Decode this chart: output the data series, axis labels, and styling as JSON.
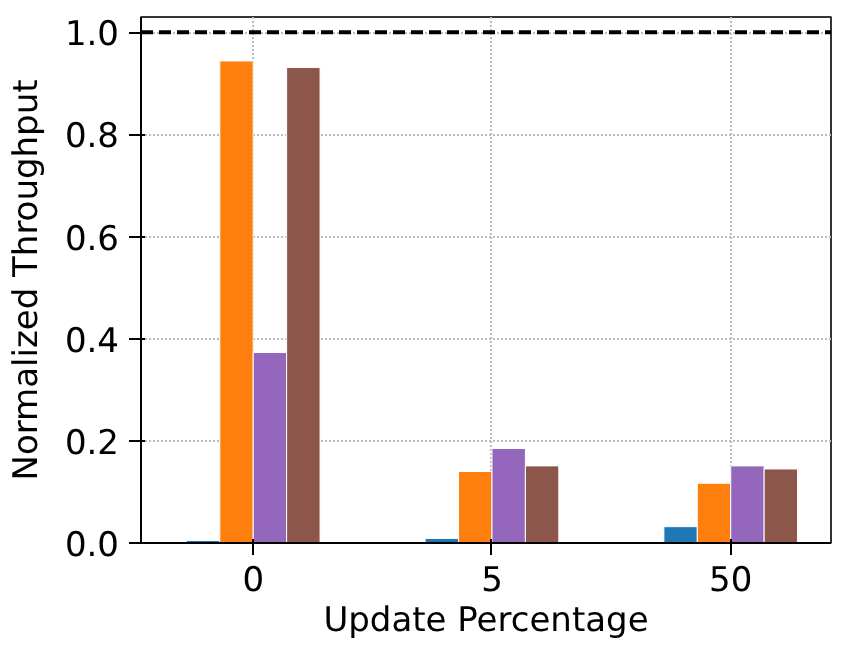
{
  "chart_data": {
    "type": "bar",
    "xlabel": "Update Percentage",
    "ylabel": "Normalized Throughput",
    "categories": [
      "0",
      "5",
      "50"
    ],
    "series": [
      {
        "color": "#1f77b4",
        "values": [
          0.005,
          0.009,
          0.032
        ]
      },
      {
        "color": "#ff7f0e",
        "values": [
          0.944,
          0.14,
          0.117
        ]
      },
      {
        "color": "#9467bd",
        "values": [
          0.373,
          0.185,
          0.151
        ]
      },
      {
        "color": "#8c564b",
        "values": [
          0.931,
          0.151,
          0.145
        ]
      }
    ],
    "ylim": [
      0,
      1.03
    ],
    "yticks": [
      {
        "value": 0,
        "label": "0.0"
      },
      {
        "value": 0.2,
        "label": "0.2"
      },
      {
        "value": 0.4,
        "label": "0.4"
      },
      {
        "value": 0.6,
        "label": "0.6"
      },
      {
        "value": 0.8,
        "label": "0.8"
      },
      {
        "value": 1.0,
        "label": "1.0"
      }
    ],
    "grid": true,
    "ref_lines": [
      {
        "axis": "y",
        "value": 1.0,
        "color": "#000000",
        "line_style": "dashed"
      }
    ]
  }
}
